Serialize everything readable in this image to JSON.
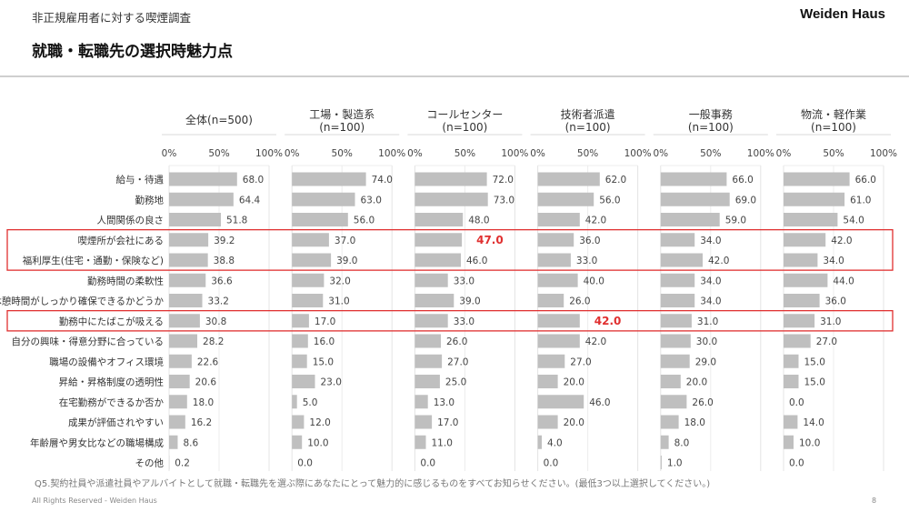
{
  "header": {
    "subtitle": "非正規雇用者に対する喫煙調査",
    "title": "就職・転職先の選択時魅力点",
    "brand": "Weiden Haus"
  },
  "footer": {
    "question": "Q5.契約社員や派遣社員やアルバイトとして就職・転職先を選ぶ際にあなたにとって魅力的に感じるものをすべてお知らせください。(最低3つ以上選択してください。)",
    "copyright": "All Rights Reserved - Weiden Haus",
    "page_number": "8"
  },
  "colors": {
    "bar": "#bfbfbf",
    "highlight": "#e03030",
    "label": "#333333",
    "value": "#444444"
  },
  "chart_data": {
    "type": "bar",
    "orientation": "horizontal",
    "title": "就職・転職先の選択時魅力点",
    "xlim": [
      0,
      100
    ],
    "tick_labels": [
      "0%",
      "50%",
      "100%"
    ],
    "grid": true,
    "categories": [
      "給与・待遇",
      "勤務地",
      "人間関係の良さ",
      "喫煙所が会社にある",
      "福利厚生(住宅・通勤・保険など)",
      "勤務時間の柔軟性",
      "休憩時間がしっかり確保できるかどうか",
      "勤務中にたばこが吸える",
      "自分の興味・得意分野に合っている",
      "職場の設備やオフィス環境",
      "昇給・昇格制度の透明性",
      "在宅勤務ができるか否か",
      "成果が評価されやすい",
      "年齢層や男女比などの職場構成",
      "その他"
    ],
    "highlighted_rows": [
      3,
      4,
      7
    ],
    "series": [
      {
        "name": "全体",
        "n": "(n=500)",
        "values": [
          68.0,
          64.4,
          51.8,
          39.2,
          38.8,
          36.6,
          33.2,
          30.8,
          28.2,
          22.6,
          20.6,
          18.0,
          16.2,
          8.6,
          0.2
        ],
        "emphasis": []
      },
      {
        "name": "工場・製造系",
        "n": "(n=100)",
        "values": [
          74.0,
          63.0,
          56.0,
          37.0,
          39.0,
          32.0,
          31.0,
          17.0,
          16.0,
          15.0,
          23.0,
          5.0,
          12.0,
          10.0,
          0.0
        ],
        "emphasis": []
      },
      {
        "name": "コールセンター",
        "n": "(n=100)",
        "values": [
          72.0,
          73.0,
          48.0,
          47.0,
          46.0,
          33.0,
          39.0,
          33.0,
          26.0,
          27.0,
          25.0,
          13.0,
          17.0,
          11.0,
          0.0
        ],
        "emphasis": [
          3
        ]
      },
      {
        "name": "技術者派遣",
        "n": "(n=100)",
        "values": [
          62.0,
          56.0,
          42.0,
          36.0,
          33.0,
          40.0,
          26.0,
          42.0,
          42.0,
          27.0,
          20.0,
          46.0,
          20.0,
          4.0,
          0.0
        ],
        "emphasis": [
          7
        ]
      },
      {
        "name": "一般事務",
        "n": "(n=100)",
        "values": [
          66.0,
          69.0,
          59.0,
          34.0,
          42.0,
          34.0,
          34.0,
          31.0,
          30.0,
          29.0,
          20.0,
          26.0,
          18.0,
          8.0,
          1.0
        ],
        "emphasis": []
      },
      {
        "name": "物流・軽作業",
        "n": "(n=100)",
        "values": [
          66.0,
          61.0,
          54.0,
          42.0,
          34.0,
          44.0,
          36.0,
          31.0,
          27.0,
          15.0,
          15.0,
          0.0,
          14.0,
          10.0,
          0.0
        ],
        "emphasis": []
      }
    ]
  }
}
